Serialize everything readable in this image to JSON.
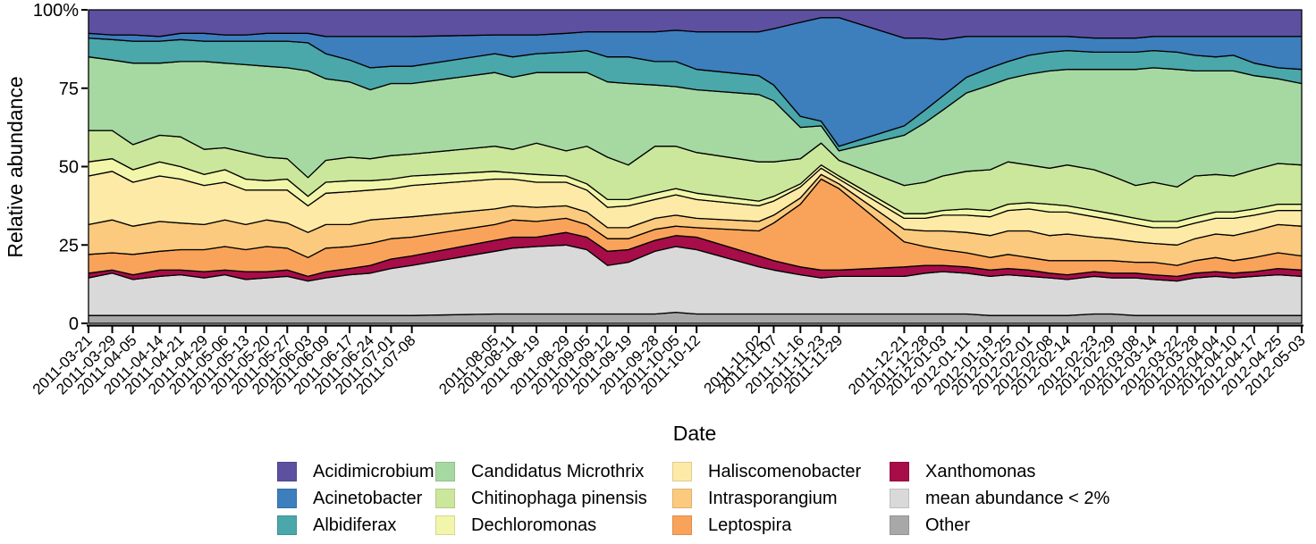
{
  "chart_data": {
    "type": "area",
    "stacked": true,
    "title": "",
    "xlabel": "Date",
    "ylabel": "Relative abundance",
    "ylim": [
      0,
      100
    ],
    "grid": false,
    "legend_position": "bottom",
    "y_ticks": [
      {
        "label": "100%",
        "value": 100
      },
      {
        "label": "75",
        "value": 75
      },
      {
        "label": "50",
        "value": 50
      },
      {
        "label": "25",
        "value": 25
      },
      {
        "label": "0",
        "value": 0
      }
    ],
    "x": [
      "2011-03-21",
      "2011-03-29",
      "2011-04-05",
      "2011-04-14",
      "2011-04-21",
      "2011-04-29",
      "2011-05-06",
      "2011-05-13",
      "2011-05-20",
      "2011-05-27",
      "2011-06-03",
      "2011-06-09",
      "2011-06-17",
      "2011-06-24",
      "2011-07-01",
      "2011-07-08",
      "2011-08-05",
      "2011-08-11",
      "2011-08-19",
      "2011-08-29",
      "2011-09-05",
      "2011-09-12",
      "2011-09-19",
      "2011-09-28",
      "2011-10-05",
      "2011-10-12",
      "2011-11-02",
      "2011-11-07",
      "2011-11-16",
      "2011-11-23",
      "2011-11-29",
      "2011-12-21",
      "2011-12-28",
      "2012-01-03",
      "2012-01-11",
      "2012-01-19",
      "2012-01-25",
      "2012-02-01",
      "2012-02-08",
      "2012-02-14",
      "2012-02-23",
      "2012-02-29",
      "2012-03-08",
      "2012-03-14",
      "2012-03-22",
      "2012-03-28",
      "2012-04-04",
      "2012-04-10",
      "2012-04-17",
      "2012-04-25",
      "2012-05-03"
    ],
    "series": [
      {
        "name": "Other",
        "color": "#a8a8a8",
        "values": [
          2.5,
          2.5,
          2.5,
          2.5,
          2.5,
          2.5,
          2.5,
          2.5,
          2.5,
          2.5,
          2.5,
          2.5,
          2.5,
          2.5,
          2.5,
          2.5,
          3,
          3,
          3,
          3,
          3,
          3,
          3,
          3,
          3.5,
          3,
          3,
          3,
          3,
          3,
          3,
          3,
          3,
          3,
          3,
          2.5,
          2.5,
          2.5,
          2.5,
          2.5,
          3,
          3,
          2.5,
          2.5,
          2.5,
          2.5,
          2.5,
          2.5,
          2.5,
          2.5,
          2.5
        ]
      },
      {
        "name": "mean abundance < 2%",
        "color": "#d9d9d9",
        "values": [
          12,
          13.5,
          11.5,
          12.5,
          13,
          12,
          13,
          11.5,
          12,
          12.5,
          11,
          12,
          13,
          13.5,
          15,
          16,
          20,
          21,
          21.5,
          22,
          20.5,
          15.5,
          16.5,
          20,
          21,
          20.5,
          15,
          14,
          12.5,
          11.5,
          12,
          12,
          13,
          13.5,
          13,
          12.5,
          13,
          12.5,
          12,
          11.5,
          12,
          11.5,
          12,
          11.5,
          11,
          12,
          12.5,
          12,
          12.5,
          13,
          12.5
        ]
      },
      {
        "name": "Xanthomonas",
        "color": "#a60d49",
        "values": [
          1.5,
          1,
          1.5,
          2,
          1.5,
          2,
          1.5,
          2.5,
          2,
          2,
          1.5,
          2,
          2,
          2.5,
          3,
          3,
          3.5,
          3.5,
          3,
          4,
          4,
          4.5,
          4,
          3.5,
          3.5,
          4,
          3.5,
          3,
          2.5,
          2.5,
          2,
          3,
          2.5,
          2,
          2,
          2,
          2,
          2,
          1.5,
          1.5,
          1.5,
          1.5,
          1.5,
          1.5,
          1.5,
          1.5,
          1.5,
          1.5,
          1.5,
          2,
          2
        ]
      },
      {
        "name": "Leptospira",
        "color": "#f9a35a",
        "values": [
          6,
          5.5,
          6.5,
          6,
          6.5,
          7,
          7.5,
          7,
          8,
          7,
          6,
          7.5,
          7,
          7,
          6.5,
          6,
          5,
          5.5,
          5,
          4.5,
          4,
          4,
          3.5,
          3.5,
          3,
          3,
          8,
          12,
          20,
          29,
          26,
          8,
          6,
          5,
          4.5,
          4,
          4.5,
          4,
          4,
          4.5,
          3.5,
          4,
          3.5,
          4,
          3.5,
          4,
          4.5,
          4,
          4.5,
          5,
          4.5
        ]
      },
      {
        "name": "Intrasporangium",
        "color": "#fbca7e",
        "values": [
          9.5,
          10.5,
          9,
          9.5,
          8.5,
          8,
          8.5,
          8,
          8.5,
          8,
          8,
          7.5,
          7,
          7.5,
          6.5,
          6.5,
          5,
          4.5,
          4.5,
          4,
          4,
          3.5,
          3.5,
          3.5,
          3.5,
          3,
          3,
          2.5,
          2,
          1.5,
          1.5,
          4,
          5,
          6,
          6.5,
          7,
          7.5,
          8.5,
          8,
          8.5,
          7.5,
          7,
          6.5,
          6,
          6.5,
          7,
          7.5,
          8,
          8.5,
          9,
          9.5
        ]
      },
      {
        "name": "Haliscomenobacter",
        "color": "#fdeaa6",
        "values": [
          15.5,
          15.5,
          14,
          14.5,
          14,
          12.5,
          12,
          11,
          9.5,
          10.5,
          8.5,
          10,
          10.5,
          9.5,
          9.5,
          10,
          9.5,
          8.5,
          8,
          7.5,
          7,
          6.5,
          7,
          6,
          6.5,
          6,
          5,
          4.5,
          3.5,
          2,
          1.5,
          3.5,
          4,
          5,
          5.5,
          6,
          6.5,
          7,
          7.5,
          7,
          6.5,
          6,
          5.5,
          5,
          5.5,
          5,
          5,
          5.5,
          5,
          4.5,
          5
        ]
      },
      {
        "name": "Dechloromonas",
        "color": "#f1f6aa",
        "values": [
          4.5,
          4,
          4,
          4.5,
          4,
          3.5,
          4,
          3.5,
          3,
          3.5,
          3,
          3.5,
          3.5,
          3,
          3,
          3,
          2.5,
          2,
          2.5,
          2,
          2,
          2.5,
          2,
          2,
          2,
          2,
          1.5,
          1.5,
          1,
          1,
          1,
          1.5,
          1.5,
          1.5,
          2,
          2,
          2,
          2,
          2.5,
          2,
          2,
          2,
          2,
          2,
          2,
          2,
          2,
          2,
          2,
          2,
          2
        ]
      },
      {
        "name": "Chitinophaga pinensis",
        "color": "#cbe79b",
        "values": [
          10,
          9,
          8,
          8.5,
          9.5,
          8,
          7,
          8.5,
          7.5,
          6.5,
          6,
          7,
          7.5,
          7,
          7.5,
          7,
          8,
          7.5,
          10,
          8,
          12,
          13.5,
          11,
          15,
          13.5,
          13,
          12.5,
          11,
          8,
          7,
          5,
          9,
          10,
          11,
          12,
          13,
          13.5,
          12,
          11.5,
          13,
          13,
          12,
          10.5,
          12.5,
          11,
          13,
          12,
          11.5,
          12.5,
          13,
          12.5
        ]
      },
      {
        "name": "Candidatus Microthrix",
        "color": "#a6d9a2",
        "values": [
          23.5,
          22.5,
          26,
          23,
          24,
          28,
          27,
          28,
          29,
          29,
          34,
          26,
          24,
          22,
          23,
          22.5,
          23.5,
          23,
          22.5,
          25,
          23.5,
          24,
          26,
          19.5,
          19,
          20,
          21.5,
          19.5,
          10,
          5.5,
          3,
          16,
          19,
          21,
          25,
          27,
          26.5,
          29,
          31,
          30.5,
          32,
          34,
          37,
          36.5,
          37.5,
          33.5,
          33,
          33.5,
          30,
          27,
          26
        ]
      },
      {
        "name": "Albidiferax",
        "color": "#4aa7aa",
        "values": [
          6,
          6.5,
          7,
          7,
          7,
          6.5,
          7,
          7.5,
          8,
          8.5,
          9,
          8,
          7,
          7,
          5.5,
          5.5,
          6,
          6.5,
          6,
          6.5,
          7,
          8,
          8.5,
          7.5,
          8,
          6.5,
          6,
          5,
          3.5,
          1.5,
          1.5,
          3,
          4,
          4.5,
          5,
          5.5,
          5.5,
          6,
          6,
          6,
          5.5,
          5.5,
          5.5,
          5.5,
          5.5,
          5,
          4.5,
          5,
          4,
          3.5,
          4.5
        ]
      },
      {
        "name": "Acinetobacter",
        "color": "#3d7ebd",
        "values": [
          1.5,
          1.5,
          2,
          1.5,
          2,
          2.5,
          2,
          2,
          2.5,
          2.5,
          3,
          5.5,
          7.5,
          10,
          9.5,
          9.5,
          6,
          7,
          6,
          6,
          6,
          8,
          8,
          9.5,
          10,
          12,
          14,
          18,
          30,
          33,
          41,
          28,
          23,
          18,
          13,
          10,
          8,
          6,
          5,
          4.5,
          4.5,
          4.5,
          4.5,
          4.5,
          5,
          6,
          6.5,
          6,
          8.5,
          10,
          10.5
        ]
      },
      {
        "name": "Acidimicrobium",
        "color": "#5d50a1",
        "values": [
          7.5,
          8,
          8,
          8.5,
          7.5,
          7.5,
          8,
          8,
          7.5,
          7.5,
          7.5,
          8.5,
          8.5,
          8.5,
          8.5,
          8.5,
          8,
          8,
          8,
          7.5,
          7,
          7,
          7,
          7,
          6.5,
          7,
          7,
          6,
          4,
          2.5,
          2.5,
          9,
          9,
          9.5,
          8.5,
          8.5,
          8.5,
          8.5,
          8.5,
          8.5,
          9,
          9,
          9,
          8.5,
          8.5,
          8.5,
          8.5,
          8.5,
          8.5,
          8.5,
          8.5
        ]
      }
    ]
  },
  "layout_hints": {
    "legend_columns": 4,
    "legend_rows": 3
  }
}
